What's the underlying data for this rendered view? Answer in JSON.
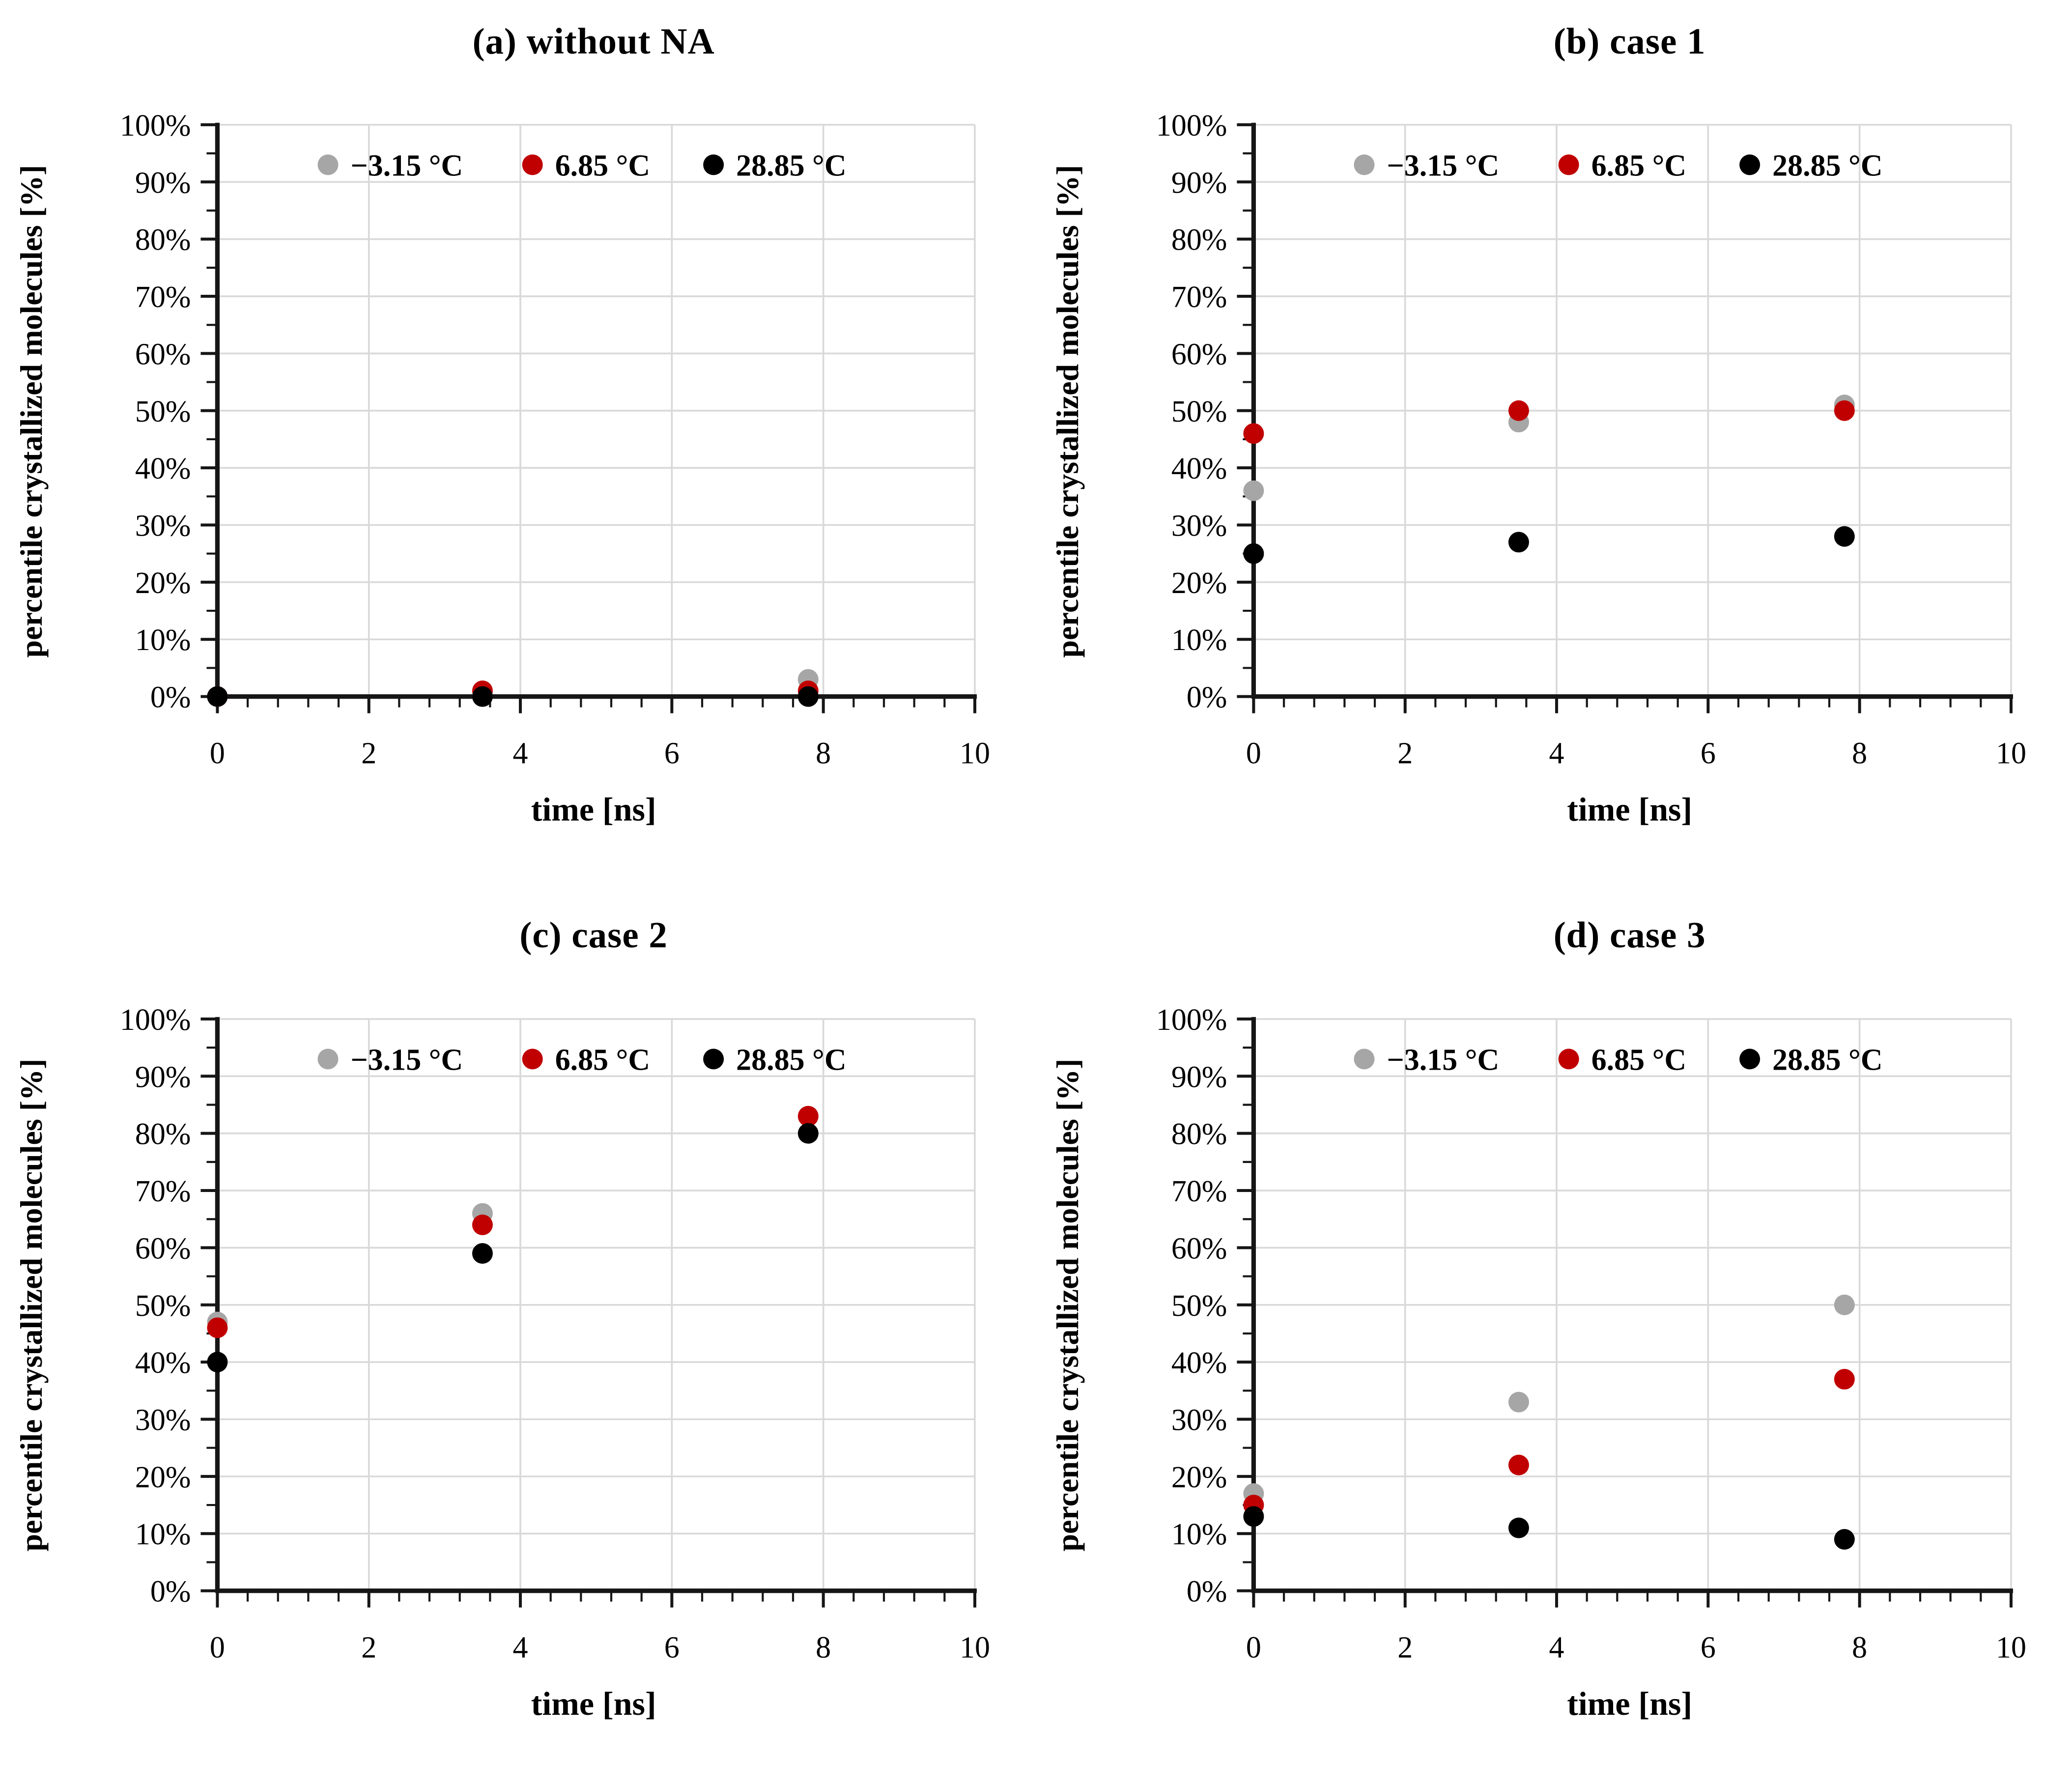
{
  "axes": {
    "xlabel": "time [ns]",
    "ylabel": "percentile crystallized molecules [%]",
    "xlim": [
      0,
      10
    ],
    "ylim": [
      0,
      100
    ],
    "x_tick_values": [
      0,
      2,
      4,
      6,
      8,
      10
    ],
    "x_tick_labels": [
      "0",
      "2",
      "4",
      "6",
      "8",
      "10"
    ],
    "x_minor_step": 0.4,
    "y_tick_values": [
      0,
      10,
      20,
      30,
      40,
      50,
      60,
      70,
      80,
      90,
      100
    ],
    "y_tick_labels": [
      "0%",
      "10%",
      "20%",
      "30%",
      "40%",
      "50%",
      "60%",
      "70%",
      "80%",
      "90%",
      "100%"
    ],
    "y_minor_step": 5,
    "grid": true,
    "grid_color": "#d9d9d9",
    "axis_color": "#161616",
    "legend_position": "top-inside"
  },
  "legend": {
    "entries": [
      {
        "label": "−3.15 °C",
        "color": "#a6a6a6",
        "marker": "circle-icon"
      },
      {
        "label": "6.85 °C",
        "color": "#c00000",
        "marker": "circle-icon"
      },
      {
        "label": "28.85 °C",
        "color": "#000000",
        "marker": "circle-icon"
      }
    ]
  },
  "chart_data": [
    {
      "type": "scatter",
      "title": "(a) without NA",
      "xlabel": "time [ns]",
      "ylabel": "percentile crystallized molecules [%]",
      "x": [
        0,
        3.5,
        7.8
      ],
      "series": [
        {
          "name": "−3.15 °C",
          "color": "#a6a6a6",
          "values": [
            0,
            0,
            3
          ]
        },
        {
          "name": "6.85 °C",
          "color": "#c00000",
          "values": [
            0,
            1,
            1
          ]
        },
        {
          "name": "28.85 °C",
          "color": "#000000",
          "values": [
            0,
            0,
            0
          ]
        }
      ],
      "xlim": [
        0,
        10
      ],
      "ylim": [
        0,
        100
      ]
    },
    {
      "type": "scatter",
      "title": "(b) case 1",
      "xlabel": "time [ns]",
      "ylabel": "percentile crystallized molecules [%]",
      "x": [
        0,
        3.5,
        7.8
      ],
      "series": [
        {
          "name": "−3.15 °C",
          "color": "#a6a6a6",
          "values": [
            36,
            48,
            51
          ]
        },
        {
          "name": "6.85 °C",
          "color": "#c00000",
          "values": [
            46,
            50,
            50
          ]
        },
        {
          "name": "28.85 °C",
          "color": "#000000",
          "values": [
            25,
            27,
            28
          ]
        }
      ],
      "xlim": [
        0,
        10
      ],
      "ylim": [
        0,
        100
      ]
    },
    {
      "type": "scatter",
      "title": "(c) case 2",
      "xlabel": "time [ns]",
      "ylabel": "percentile crystallized molecules [%]",
      "x": [
        0,
        3.5,
        7.8
      ],
      "series": [
        {
          "name": "−3.15 °C",
          "color": "#a6a6a6",
          "values": [
            47,
            66,
            83
          ]
        },
        {
          "name": "6.85 °C",
          "color": "#c00000",
          "values": [
            46,
            64,
            83
          ]
        },
        {
          "name": "28.85 °C",
          "color": "#000000",
          "values": [
            40,
            59,
            80
          ]
        }
      ],
      "xlim": [
        0,
        10
      ],
      "ylim": [
        0,
        100
      ]
    },
    {
      "type": "scatter",
      "title": "(d) case 3",
      "xlabel": "time [ns]",
      "ylabel": "percentile crystallized molecules [%]",
      "x": [
        0,
        3.5,
        7.8
      ],
      "series": [
        {
          "name": "−3.15 °C",
          "color": "#a6a6a6",
          "values": [
            17,
            33,
            50
          ]
        },
        {
          "name": "6.85 °C",
          "color": "#c00000",
          "values": [
            15,
            22,
            37
          ]
        },
        {
          "name": "28.85 °C",
          "color": "#000000",
          "values": [
            13,
            11,
            9
          ]
        }
      ],
      "xlim": [
        0,
        10
      ],
      "ylim": [
        0,
        100
      ]
    }
  ]
}
